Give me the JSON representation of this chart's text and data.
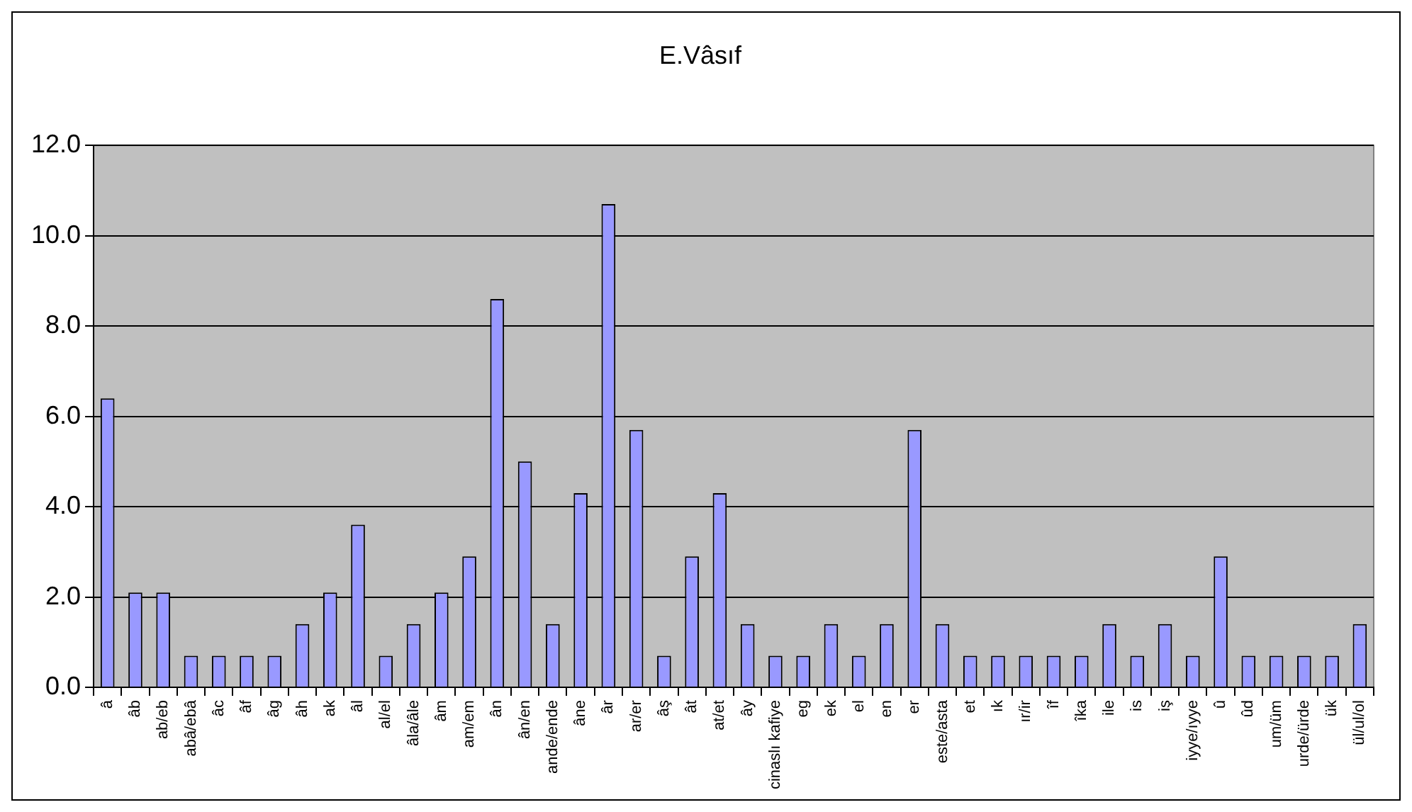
{
  "chart_data": {
    "type": "bar",
    "title": "E.Vâsıf",
    "categories": [
      "â",
      "âb",
      "ab/eb",
      "abâ/ebâ",
      "âc",
      "âf",
      "âg",
      "âh",
      "ak",
      "âl",
      "al/el",
      "âla/âle",
      "âm",
      "am/em",
      "ân",
      "ân/en",
      "ande/ende",
      "âne",
      "âr",
      "ar/er",
      "âş",
      "ât",
      "at/et",
      "ây",
      "cinaslı kafiye",
      "eg",
      "ek",
      "el",
      "en",
      "er",
      "este/asta",
      "et",
      "ık",
      "ır/ir",
      "îf",
      "îka",
      "ile",
      "is",
      "iş",
      "iyye/ıyye",
      "û",
      "ûd",
      "um/üm",
      "urde/ürde",
      "ük",
      "ül/ul/ol"
    ],
    "values": [
      6.4,
      2.1,
      2.1,
      0.7,
      0.7,
      0.7,
      0.7,
      1.4,
      2.1,
      3.6,
      0.7,
      1.4,
      2.1,
      2.9,
      8.6,
      5.0,
      1.4,
      4.3,
      10.7,
      5.7,
      0.7,
      2.9,
      4.3,
      1.4,
      0.7,
      0.7,
      1.4,
      0.7,
      1.4,
      5.7,
      1.4,
      0.7,
      0.7,
      0.7,
      0.7,
      0.7,
      1.4,
      0.7,
      1.4,
      0.7,
      2.9,
      0.7,
      0.7,
      0.7,
      0.7,
      1.4
    ],
    "color": "#9999ff",
    "ylim": [
      0,
      12
    ],
    "yticks": [
      {
        "value": 0,
        "label": "0.0"
      },
      {
        "value": 2,
        "label": "2.0"
      },
      {
        "value": 4,
        "label": "4.0"
      },
      {
        "value": 6,
        "label": "6.0"
      },
      {
        "value": 8,
        "label": "8.0"
      },
      {
        "value": 10,
        "label": "10.0"
      },
      {
        "value": 12,
        "label": "12.0"
      }
    ],
    "grid": "y",
    "legend": false
  }
}
